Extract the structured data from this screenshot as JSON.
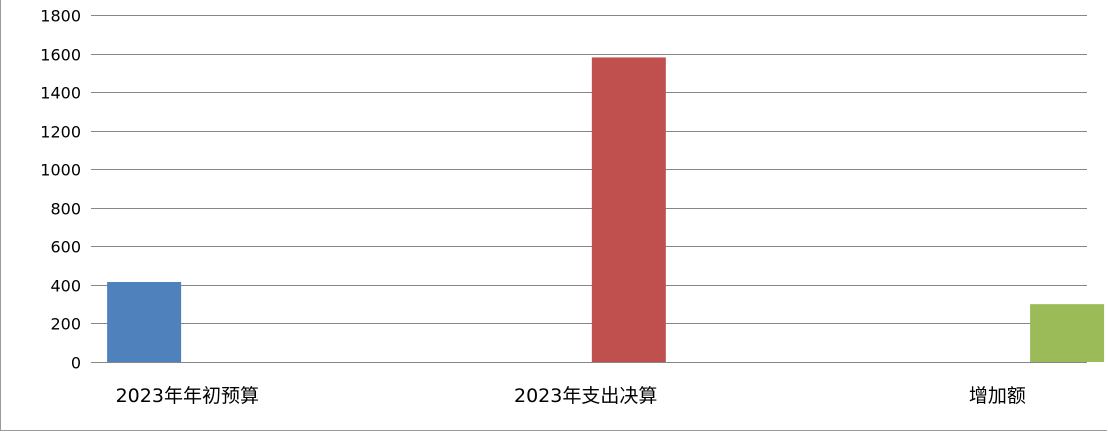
{
  "chart_data": {
    "type": "bar",
    "categories": [
      "2023年年初预算",
      "2023年支出决算",
      "增加额"
    ],
    "values": [
      415,
      1580,
      300
    ],
    "colors": [
      "#4f81bd",
      "#c0504d",
      "#9bbb59"
    ],
    "ylim": [
      0,
      1800
    ],
    "yticks": [
      0,
      200,
      400,
      600,
      800,
      1000,
      1200,
      1400,
      1600,
      1800
    ],
    "grid": true,
    "legend": "none",
    "title": "",
    "xlabel": "",
    "ylabel": ""
  }
}
